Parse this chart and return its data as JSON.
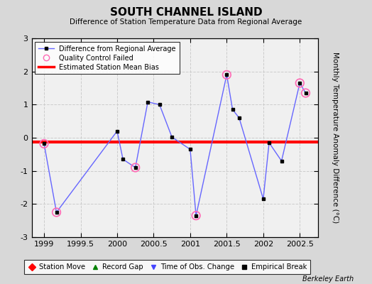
{
  "title": "SOUTH CHANNEL ISLAND",
  "subtitle": "Difference of Station Temperature Data from Regional Average",
  "ylabel": "Monthly Temperature Anomaly Difference (°C)",
  "xlabel_vals": [
    1999,
    1999.5,
    2000,
    2000.5,
    2001,
    2001.5,
    2002,
    2002.5
  ],
  "xlim": [
    1998.83,
    2002.75
  ],
  "ylim": [
    -3,
    3
  ],
  "mean_bias": -0.12,
  "background_color": "#d8d8d8",
  "plot_bg_color": "#f0f0f0",
  "line_x": [
    1999.0,
    1999.17,
    2000.0,
    2000.08,
    2000.25,
    2000.42,
    2000.58,
    2000.75,
    2001.0,
    2001.08,
    2001.5,
    2001.58,
    2001.67,
    2002.0,
    2002.08,
    2002.25,
    2002.5,
    2002.58
  ],
  "line_y": [
    -0.18,
    -2.25,
    0.2,
    -0.65,
    -0.9,
    1.08,
    1.0,
    0.02,
    -0.35,
    -2.35,
    1.9,
    0.85,
    0.6,
    -1.85,
    -0.15,
    -0.7,
    1.65,
    1.35
  ],
  "qc_x": [
    1999.0,
    1999.17,
    2000.25,
    2001.08,
    2001.5,
    2002.5,
    2002.58
  ],
  "qc_y": [
    -0.18,
    -2.25,
    -0.9,
    -2.35,
    1.9,
    1.65,
    1.35
  ],
  "footnote": "Berkeley Earth",
  "grid_color": "#cccccc"
}
